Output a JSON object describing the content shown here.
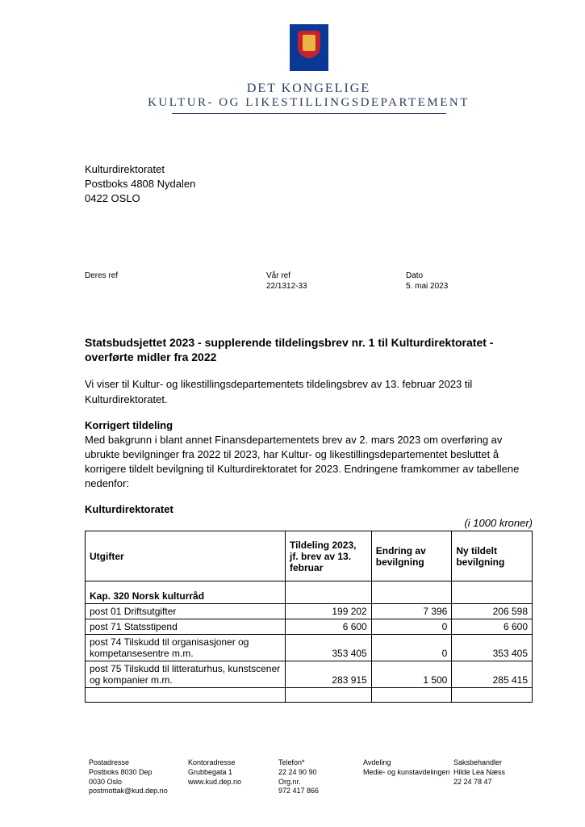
{
  "logo": {
    "line1": "DET KONGELIGE",
    "line2": "KULTUR- OG LIKESTILLINGSDEPARTEMENT"
  },
  "recipient": {
    "name": "Kulturdirektoratet",
    "street": "Postboks 4808 Nydalen",
    "city": "0422 OSLO"
  },
  "refs": {
    "deres_label": "Deres ref",
    "deres_value": "",
    "var_label": "Vår ref",
    "var_value": "22/1312-33",
    "dato_label": "Dato",
    "dato_value": "5. mai 2023"
  },
  "title": "Statsbudsjettet 2023 - supplerende tildelingsbrev nr. 1 til Kulturdirektoratet - overførte midler fra 2022",
  "intro": "Vi viser til Kultur- og likestillingsdepartementets tildelingsbrev av 13. februar 2023 til Kulturdirektoratet.",
  "section1_head": "Korrigert tildeling",
  "section1_body": "Med bakgrunn i blant annet Finansdepartementets brev av 2. mars 2023 om overføring av ubrukte bevilgninger fra 2022 til 2023, har Kultur- og likestillingsdepartementet besluttet å korrigere tildelt bevilgning til Kulturdirektoratet for 2023. Endringene framkommer av tabellene nedenfor:",
  "table_heading": "Kulturdirektoratet",
  "table_note": "(i 1000 kroner)",
  "table": {
    "headers": {
      "col1": "Utgifter",
      "col2": "Tildeling 2023, jf. brev av 13. februar",
      "col3": "Endring av bevilgning",
      "col4": "Ny tildelt bevilgning"
    },
    "section_row": "Kap. 320 Norsk kulturråd",
    "rows": [
      {
        "desc": "post 01 Driftsutgifter",
        "a": "199 202",
        "b": "7 396",
        "c": "206 598"
      },
      {
        "desc": "post 71 Statsstipend",
        "a": "6 600",
        "b": "0",
        "c": "6 600"
      },
      {
        "desc": "post 74 Tilskudd til organisasjoner og kompetansesentre m.m.",
        "a": "353 405",
        "b": "0",
        "c": "353 405"
      },
      {
        "desc": "post 75 Tilskudd til litteraturhus, kunstscener og kompanier m.m.",
        "a": "283 915",
        "b": "1 500",
        "c": "285 415"
      }
    ]
  },
  "footer": {
    "col1": {
      "l1": "Postadresse",
      "l2": "Postboks 8030 Dep",
      "l3": "0030 Oslo",
      "l4": "postmottak@kud.dep.no"
    },
    "col2": {
      "l1": "Kontoradresse",
      "l2": "Grubbegata 1",
      "l3": "",
      "l4": "www.kud.dep.no"
    },
    "col3": {
      "l1": "Telefon*",
      "l2": "22 24 90 90",
      "l3": "Org.nr.",
      "l4": "972 417 866"
    },
    "col4": {
      "l1": "Avdeling",
      "l2": "Medie- og kunstavdelingen",
      "l3": "",
      "l4": ""
    },
    "col5": {
      "l1": "Saksbehandler",
      "l2": "Hilde Lea Næss",
      "l3": "22 24 78 47",
      "l4": ""
    }
  }
}
